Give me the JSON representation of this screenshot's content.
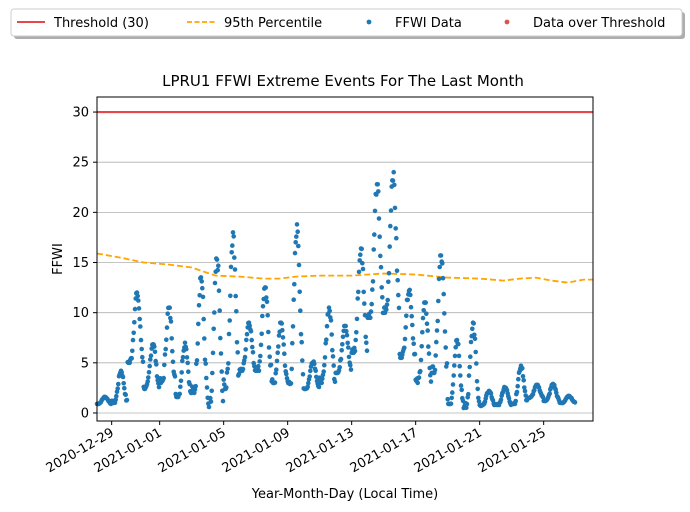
{
  "chart_data": {
    "type": "scatter",
    "title": "LPRU1 FFWI Extreme Events For The Last Month",
    "xlabel": "Year-Month-Day (Local Time)",
    "ylabel": "FFWI",
    "xlim": [
      "2020-12-28T02:00",
      "2021-01-28T02:00"
    ],
    "ylim": [
      -0.8,
      31.5
    ],
    "yticks": [
      0,
      5,
      10,
      15,
      20,
      25,
      30
    ],
    "xticks": [
      "2020-12-29",
      "2021-01-01",
      "2021-01-05",
      "2021-01-09",
      "2021-01-13",
      "2021-01-17",
      "2021-01-21",
      "2021-01-25"
    ],
    "grid": "horizontal",
    "legend_placement": "top (above axes, single row)",
    "legend": [
      {
        "label": "Threshold (30)",
        "kind": "line",
        "color": "#e8474a"
      },
      {
        "label": "95th Percentile",
        "kind": "dashed",
        "color": "#ffa500"
      },
      {
        "label": "FFWI Data",
        "kind": "marker",
        "color": "#1f77b4"
      },
      {
        "label": "Data over Threshold",
        "kind": "marker",
        "color": "#d9534f"
      }
    ],
    "threshold": {
      "name": "Threshold (30)",
      "value": 30,
      "color": "#e8474a"
    },
    "percentile_95": {
      "name": "95th Percentile",
      "color": "#ffa500",
      "points": [
        [
          "2020-12-28T02:00",
          15.9
        ],
        [
          "2020-12-29T12:00",
          15.5
        ],
        [
          "2020-12-31T00:00",
          15.0
        ],
        [
          "2021-01-01T12:00",
          14.8
        ],
        [
          "2021-01-03T00:00",
          14.5
        ],
        [
          "2021-01-03T22:00",
          14.0
        ],
        [
          "2021-01-04T12:00",
          13.7
        ],
        [
          "2021-01-06T00:00",
          13.6
        ],
        [
          "2021-01-07T12:00",
          13.4
        ],
        [
          "2021-01-08T12:00",
          13.4
        ],
        [
          "2021-01-09T12:00",
          13.6
        ],
        [
          "2021-01-11T00:00",
          13.7
        ],
        [
          "2021-01-13T00:00",
          13.7
        ],
        [
          "2021-01-15T00:00",
          13.9
        ],
        [
          "2021-01-17T00:00",
          13.8
        ],
        [
          "2021-01-19T00:00",
          13.5
        ],
        [
          "2021-01-21T00:00",
          13.4
        ],
        [
          "2021-01-22T12:00",
          13.2
        ],
        [
          "2021-01-23T12:00",
          13.4
        ],
        [
          "2021-01-24T12:00",
          13.5
        ],
        [
          "2021-01-25T12:00",
          13.2
        ],
        [
          "2021-01-26T12:00",
          13.0
        ],
        [
          "2021-01-27T12:00",
          13.3
        ],
        [
          "2021-01-28T02:00",
          13.3
        ]
      ]
    },
    "series": [
      {
        "name": "FFWI Data",
        "color": "#1f77b4",
        "daily_cycles": [
          {
            "date": "2020-12-28",
            "min": 0.9,
            "max": 1.6
          },
          {
            "date": "2020-12-29",
            "min": 1.0,
            "max": 4.2
          },
          {
            "date": "2020-12-30",
            "min": 5.0,
            "max": 12.0
          },
          {
            "date": "2020-12-31",
            "min": 2.4,
            "max": 7.0
          },
          {
            "date": "2021-01-01",
            "min": 3.0,
            "max": 10.5
          },
          {
            "date": "2021-01-02",
            "min": 1.6,
            "max": 7.0
          },
          {
            "date": "2021-01-03",
            "min": 2.0,
            "max": 13.6
          },
          {
            "date": "2021-01-04",
            "min": 0.6,
            "max": 15.4
          },
          {
            "date": "2021-01-05",
            "min": 2.4,
            "max": 18.0
          },
          {
            "date": "2021-01-06",
            "min": 4.2,
            "max": 9.1
          },
          {
            "date": "2021-01-07",
            "min": 4.2,
            "max": 12.5
          },
          {
            "date": "2021-01-08",
            "min": 3.0,
            "max": 9.0
          },
          {
            "date": "2021-01-09",
            "min": 2.9,
            "max": 18.8
          },
          {
            "date": "2021-01-10",
            "min": 2.4,
            "max": 5.2
          },
          {
            "date": "2021-01-11",
            "min": 3.0,
            "max": 10.5
          },
          {
            "date": "2021-01-12",
            "min": 4.0,
            "max": 8.9
          },
          {
            "date": "2021-01-13",
            "min": 6.0,
            "max": 16.4
          },
          {
            "date": "2021-01-14",
            "min": 9.5,
            "max": 22.8
          },
          {
            "date": "2021-01-15",
            "min": 10.0,
            "max": 24.0
          },
          {
            "date": "2021-01-16",
            "min": 5.5,
            "max": 12.4
          },
          {
            "date": "2021-01-17",
            "min": 3.0,
            "max": 11.0
          },
          {
            "date": "2021-01-18",
            "min": 4.0,
            "max": 15.7
          },
          {
            "date": "2021-01-19",
            "min": 0.9,
            "max": 7.4
          },
          {
            "date": "2021-01-20",
            "min": 0.5,
            "max": 9.0
          },
          {
            "date": "2021-01-21",
            "min": 0.7,
            "max": 2.2
          },
          {
            "date": "2021-01-22",
            "min": 0.8,
            "max": 2.6
          },
          {
            "date": "2021-01-23",
            "min": 0.9,
            "max": 4.7
          },
          {
            "date": "2021-01-24",
            "min": 1.5,
            "max": 2.8
          },
          {
            "date": "2021-01-25",
            "min": 1.2,
            "max": 2.9
          },
          {
            "date": "2021-01-26",
            "min": 1.0,
            "max": 1.7
          }
        ]
      },
      {
        "name": "Data over Threshold",
        "color": "#d9534f",
        "points": []
      }
    ]
  }
}
